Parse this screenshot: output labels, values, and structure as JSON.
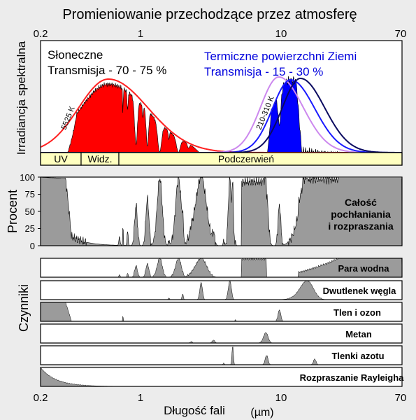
{
  "title": "Promieniowanie przechodzące przez atmosferę",
  "x_axis": {
    "label": "Długość fali",
    "unit": "(µm)",
    "ticks": [
      "0.2",
      "1",
      "10",
      "70"
    ],
    "tick_values": [
      0.2,
      1,
      10,
      70
    ],
    "scale": "log"
  },
  "spectrum_panel": {
    "ylabel": "Irradiancja spektralna",
    "solar_title": "Słoneczne",
    "solar_transmission": "Transmisja - 70 - 75 %",
    "thermal_title": "Termiczne powierzchni Ziemi",
    "thermal_transmission": "Transmisja - 15 - 30 %",
    "solar_temp_label": "5525 K",
    "thermal_temp_label": "210-310 K",
    "bands": [
      "UV",
      "Widz.",
      "Podczerwień"
    ],
    "band_edges_um": [
      0.2,
      0.4,
      0.7,
      70
    ],
    "colors": {
      "solar": "#ff0000",
      "thermal": "#0000ff",
      "curve_210": "#cc88ee",
      "curve_260": "#1a1aff",
      "curve_310": "#0a0a60",
      "band_fill": "#ffffc0"
    }
  },
  "total_panel": {
    "ylabel": "Procent",
    "yticks": [
      "100",
      "75",
      "50",
      "25",
      "0"
    ],
    "ylim": [
      0,
      100
    ],
    "label_lines": [
      "Całość",
      "pochłaniania",
      "i rozpraszania"
    ],
    "fill_color": "#9b9b9b"
  },
  "components": {
    "ylabel": "Czynniki",
    "items": [
      "Para wodna",
      "Dwutlenek węgla",
      "Tlen i ozon",
      "Metan",
      "Tlenki azotu",
      "Rozpraszanie Rayleigha"
    ]
  }
}
